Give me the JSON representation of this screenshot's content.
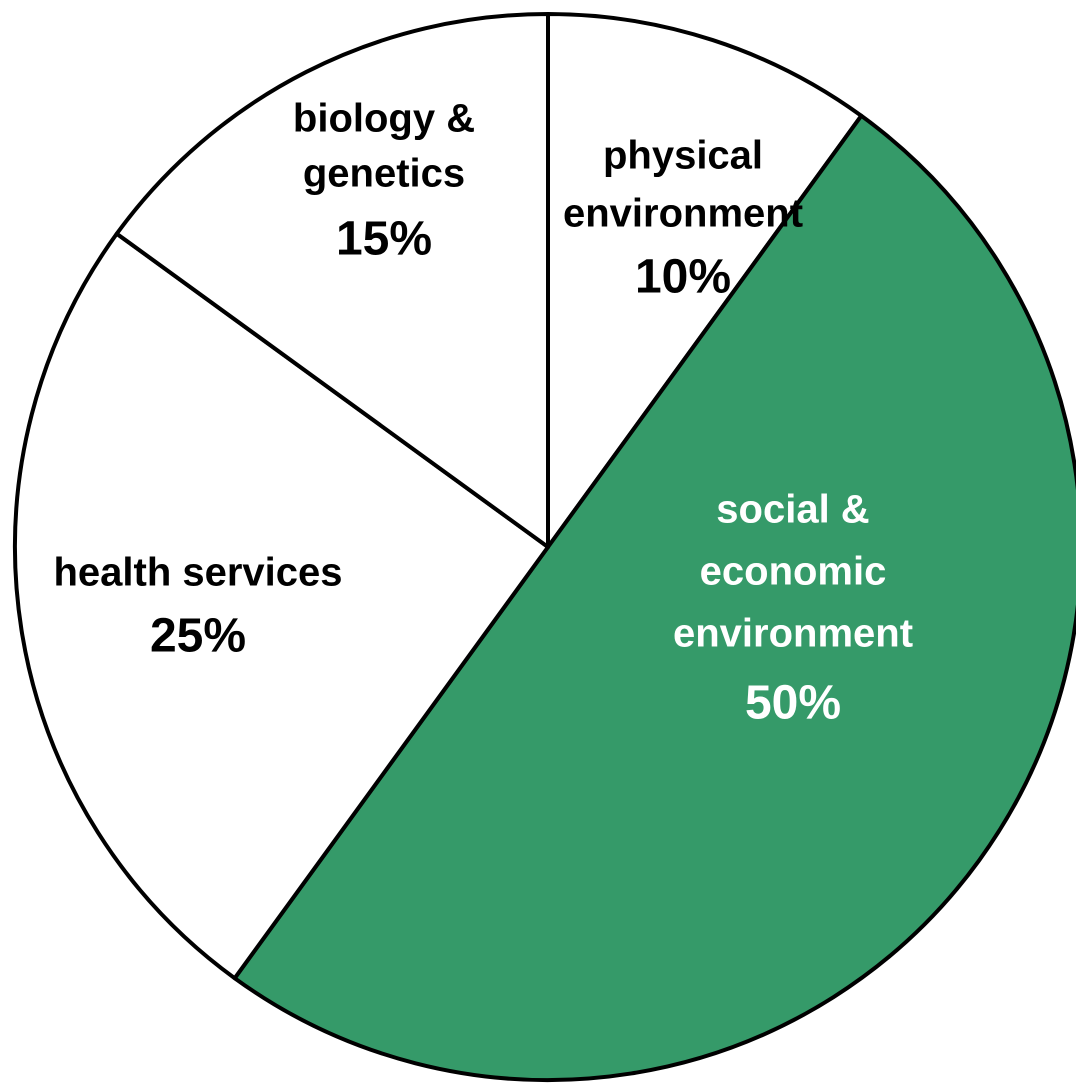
{
  "chart_data": {
    "type": "pie",
    "title": "",
    "slices": [
      {
        "name": "physical environment",
        "label_lines": [
          "physical",
          "environment"
        ],
        "pct_label": "10%",
        "value": 10,
        "color": "#ffffff",
        "text_color": "#000000"
      },
      {
        "name": "social & economic environment",
        "label_lines": [
          "social &",
          "economic",
          "environment"
        ],
        "pct_label": "50%",
        "value": 50,
        "color": "#359a69",
        "text_color": "#ffffff"
      },
      {
        "name": "health services",
        "label_lines": [
          "health services"
        ],
        "pct_label": "25%",
        "value": 25,
        "color": "#ffffff",
        "text_color": "#000000"
      },
      {
        "name": "biology & genetics",
        "label_lines": [
          "biology &",
          "genetics"
        ],
        "pct_label": "15%",
        "value": 15,
        "color": "#ffffff",
        "text_color": "#000000"
      }
    ],
    "start_angle_deg": 0,
    "direction": "clockwise",
    "legend": "none",
    "outline_color": "#000000"
  }
}
